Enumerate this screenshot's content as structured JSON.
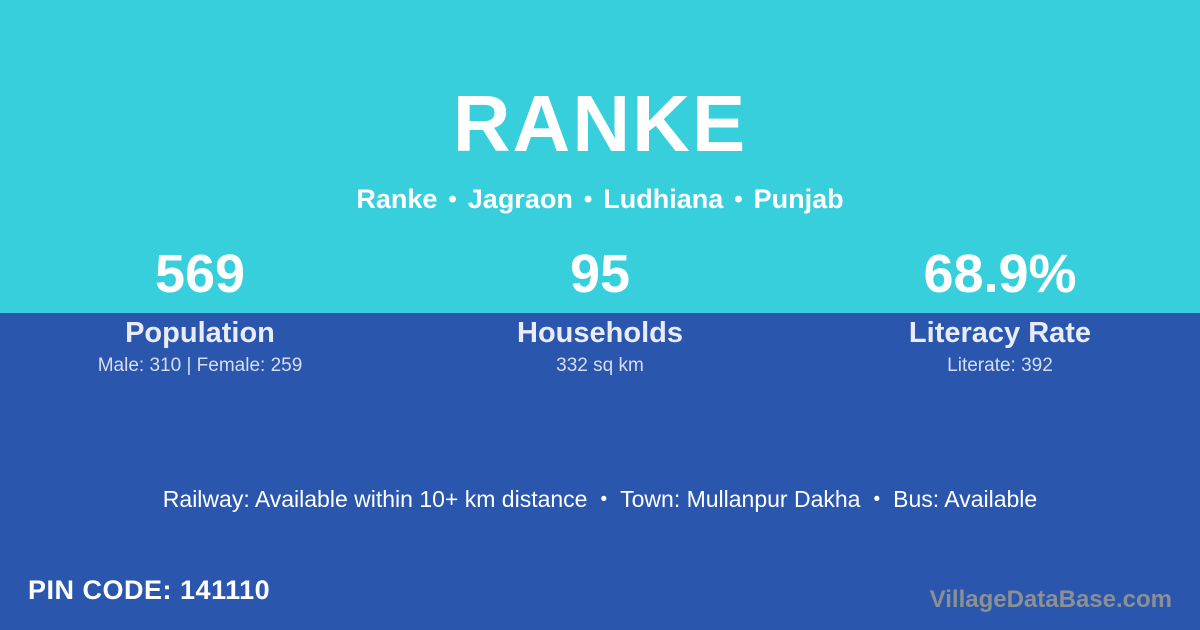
{
  "colors": {
    "top_background": "#38CFDD",
    "bottom_background": "#2A56AE",
    "primary_text": "#FFFFFF",
    "label_text": "#E9ECF8",
    "watermark_text": "#8A9095"
  },
  "header": {
    "title": "RANKE",
    "breadcrumb": [
      "Ranke",
      "Jagraon",
      "Ludhiana",
      "Punjab"
    ],
    "separator": "•"
  },
  "stats": [
    {
      "value": "569",
      "label": "Population",
      "detail": "Male: 310 | Female: 259"
    },
    {
      "value": "95",
      "label": "Households",
      "detail": "332 sq km"
    },
    {
      "value": "68.9%",
      "label": "Literacy Rate",
      "detail": "Literate: 392"
    }
  ],
  "transport": {
    "items": [
      "Railway: Available within 10+ km distance",
      "Town: Mullanpur Dakha",
      "Bus: Available"
    ],
    "separator": "•"
  },
  "footer": {
    "pin_label": "PIN CODE:",
    "pin_value": "141110",
    "watermark": "VillageDataBase.com"
  }
}
